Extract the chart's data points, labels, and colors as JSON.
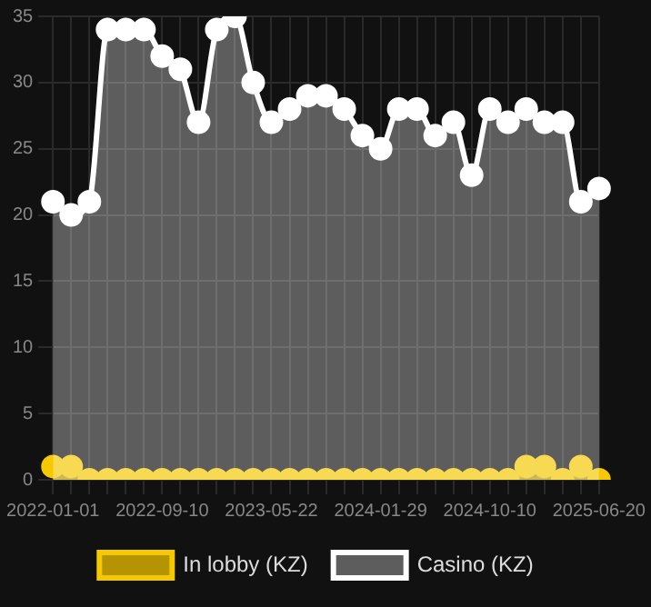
{
  "chart_data": {
    "type": "area",
    "categories": [
      "2022-01-01",
      null,
      null,
      null,
      null,
      null,
      "2022-09-10",
      null,
      null,
      null,
      null,
      null,
      "2023-05-22",
      null,
      null,
      null,
      null,
      null,
      "2024-01-29",
      null,
      null,
      null,
      null,
      null,
      "2024-10-10",
      null,
      null,
      null,
      null,
      null,
      "2025-06-20"
    ],
    "series": [
      {
        "name": "In lobby (KZ)",
        "color": "#f5c800",
        "values": [
          1,
          1,
          0,
          0,
          0,
          0,
          0,
          0,
          0,
          0,
          0,
          0,
          0,
          0,
          0,
          0,
          0,
          0,
          0,
          0,
          0,
          0,
          0,
          0,
          0,
          0,
          1,
          1,
          0,
          1,
          0
        ]
      },
      {
        "name": "Casino (KZ)",
        "color": "#ffffff",
        "values": [
          21,
          20,
          21,
          34,
          34,
          34,
          32,
          31,
          27,
          34,
          35,
          30,
          27,
          28,
          29,
          29,
          28,
          26,
          25,
          28,
          28,
          26,
          27,
          23,
          28,
          27,
          28,
          27,
          27,
          21,
          22
        ]
      }
    ],
    "ylim": [
      0,
      35
    ],
    "yticks": [
      0,
      5,
      10,
      15,
      20,
      25,
      30,
      35
    ],
    "grid": true,
    "legend": "bottom",
    "marker": "circle"
  }
}
